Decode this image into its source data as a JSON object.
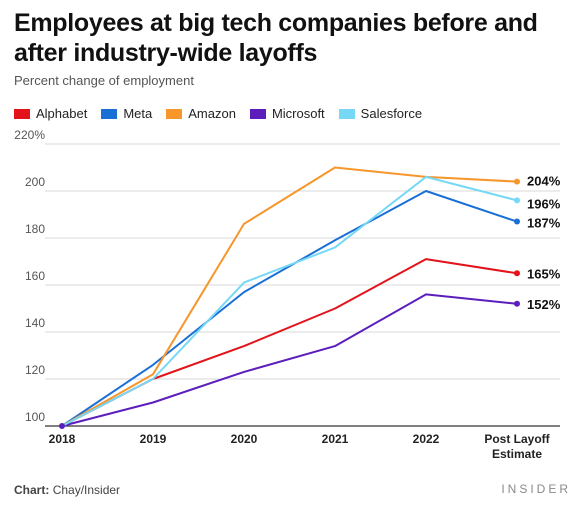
{
  "header": {
    "title": "Employees at big tech companies before and after industry-wide layoffs",
    "subtitle": "Percent change of employment"
  },
  "footer": {
    "source_label": "Chart:",
    "source_value": "Chay/Insider",
    "brand": "INSIDER"
  },
  "chart_data": {
    "type": "line",
    "title": "Employees at big tech companies before and after industry-wide layoffs",
    "subtitle": "Percent change of employment",
    "categories": [
      "2018",
      "2019",
      "2020",
      "2021",
      "2022",
      "Post Layoff Estimate"
    ],
    "category_label_lines": [
      [
        "2018"
      ],
      [
        "2019"
      ],
      [
        "2020"
      ],
      [
        "2021"
      ],
      [
        "2022"
      ],
      [
        "Post Layoff",
        "Estimate"
      ]
    ],
    "ylim": [
      100,
      220
    ],
    "y_ticks": [
      100,
      120,
      140,
      160,
      180,
      200,
      220
    ],
    "y_tick_labels": [
      "100",
      "120",
      "140",
      "160",
      "180",
      "200",
      "220%"
    ],
    "grid": true,
    "legend_position": "top-left",
    "series": [
      {
        "name": "Alphabet",
        "color": "#e3131b",
        "values": [
          100,
          120,
          134,
          150,
          171,
          165
        ],
        "end_label": "165%"
      },
      {
        "name": "Meta",
        "color": "#1a6fd6",
        "values": [
          100,
          126,
          157,
          179,
          200,
          187
        ],
        "end_label": "187%"
      },
      {
        "name": "Amazon",
        "color": "#f6962b",
        "values": [
          100,
          122,
          186,
          210,
          206,
          204
        ],
        "end_label": "204%"
      },
      {
        "name": "Microsoft",
        "color": "#5b1ebd",
        "values": [
          100,
          110,
          123,
          134,
          156,
          152
        ],
        "end_label": "152%"
      },
      {
        "name": "Salesforce",
        "color": "#76d8f5",
        "values": [
          100,
          120,
          161,
          176,
          206,
          196
        ],
        "end_label": "196%"
      }
    ]
  }
}
